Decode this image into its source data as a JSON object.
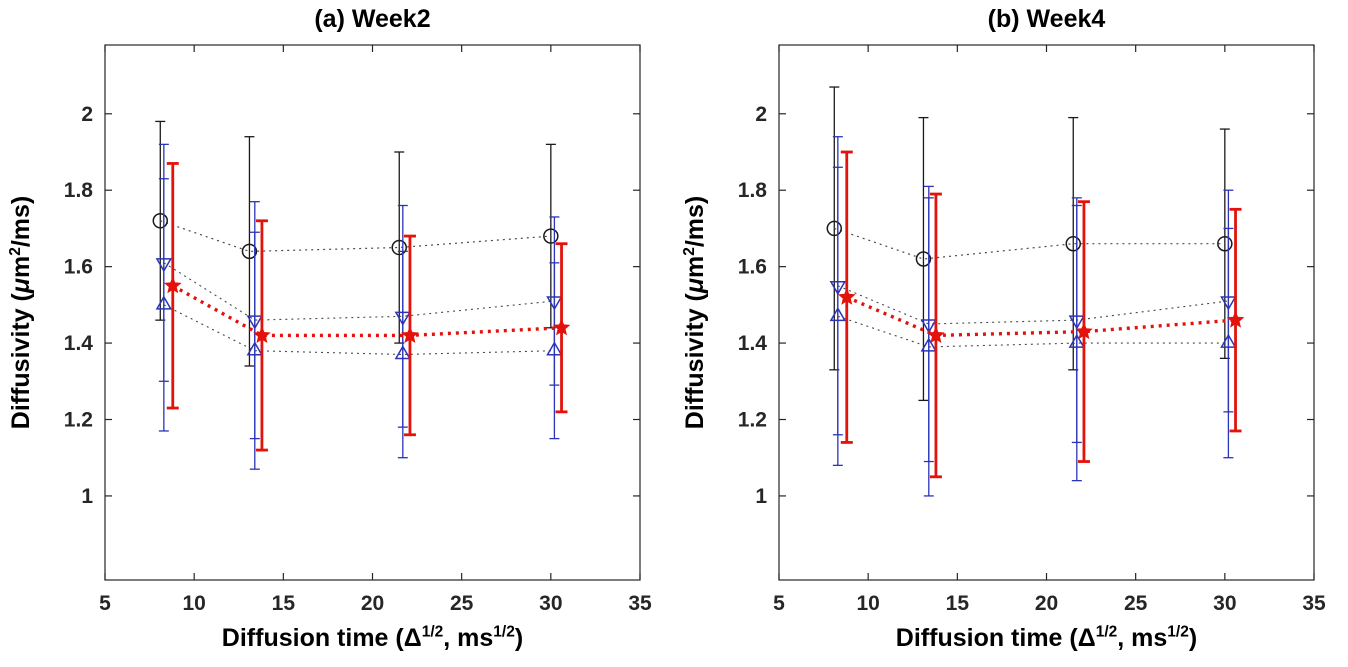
{
  "figure": {
    "background": "#ffffff",
    "axis_color": "#262626",
    "tick_label_color": "#262626",
    "text_color": "#000000"
  },
  "axis_labels": {
    "y": {
      "pre": "Diffusivity (",
      "mu": "μ",
      "base": "m",
      "sup": "2",
      "post": "/ms)"
    },
    "x": {
      "pre": "Diffusion time (",
      "delta": "Δ",
      "sup1": "1/2",
      "mid": ", ms",
      "sup2": "1/2",
      "post": ")"
    }
  },
  "chart_data": [
    {
      "type": "scatter",
      "title": "(a) Week2",
      "xlabel": "Diffusion time (Δ^1/2, ms^1/2)",
      "ylabel": "Diffusivity (μm^2/ms)",
      "xlim": [
        5,
        35
      ],
      "ylim": [
        0.78,
        2.18
      ],
      "xticks": [
        5,
        10,
        15,
        20,
        25,
        30,
        35
      ],
      "yticks": [
        1,
        1.2,
        1.4,
        1.6,
        1.8,
        2
      ],
      "grid": false,
      "legend": null,
      "series": [
        {
          "name": "black-circles",
          "marker": "circle",
          "size": 7,
          "color": "#1a1a1a",
          "line": {
            "color": "#4a4a4a",
            "width": 1.2,
            "dash": "2 4"
          },
          "errorbar": {
            "width": 1.3,
            "cap": 5
          },
          "x": [
            8.1,
            13.1,
            21.5,
            30.0
          ],
          "y": [
            1.72,
            1.64,
            1.65,
            1.68
          ],
          "err": [
            0.26,
            0.3,
            0.25,
            0.24
          ]
        },
        {
          "name": "blue-triangles-down",
          "marker": "triangle-down",
          "size": 8,
          "color": "#2a35b8",
          "line": {
            "color": "#4a4a4a",
            "width": 1.1,
            "dash": "2 4"
          },
          "errorbar": {
            "width": 1.3,
            "cap": 5
          },
          "x": [
            8.3,
            13.4,
            21.7,
            30.2
          ],
          "y": [
            1.61,
            1.46,
            1.47,
            1.51
          ],
          "err": [
            0.31,
            0.31,
            0.29,
            0.22
          ]
        },
        {
          "name": "blue-triangles-up",
          "marker": "triangle-up",
          "size": 8,
          "color": "#2a35b8",
          "line": {
            "color": "#4a4a4a",
            "width": 1.1,
            "dash": "2 4"
          },
          "errorbar": {
            "width": 1.3,
            "cap": 5
          },
          "x": [
            8.3,
            13.4,
            21.7,
            30.2
          ],
          "y": [
            1.5,
            1.38,
            1.37,
            1.38
          ],
          "err": [
            0.33,
            0.31,
            0.27,
            0.23
          ]
        },
        {
          "name": "red-stars",
          "marker": "star",
          "size": 8,
          "color": "#e3120b",
          "line": {
            "color": "#e3120b",
            "width": 3.4,
            "dash": "3 5"
          },
          "errorbar": {
            "width": 2.8,
            "cap": 6
          },
          "x": [
            8.8,
            13.8,
            22.1,
            30.6
          ],
          "y": [
            1.55,
            1.42,
            1.42,
            1.44
          ],
          "err": [
            0.32,
            0.3,
            0.26,
            0.22
          ]
        }
      ]
    },
    {
      "type": "scatter",
      "title": "(b) Week4",
      "xlabel": "Diffusion time (Δ^1/2, ms^1/2)",
      "ylabel": "Diffusivity (μm^2/ms)",
      "xlim": [
        5,
        35
      ],
      "ylim": [
        0.78,
        2.18
      ],
      "xticks": [
        5,
        10,
        15,
        20,
        25,
        30,
        35
      ],
      "yticks": [
        1,
        1.2,
        1.4,
        1.6,
        1.8,
        2
      ],
      "grid": false,
      "legend": null,
      "series": [
        {
          "name": "black-circles",
          "marker": "circle",
          "size": 7,
          "color": "#1a1a1a",
          "line": {
            "color": "#4a4a4a",
            "width": 1.2,
            "dash": "2 4"
          },
          "errorbar": {
            "width": 1.3,
            "cap": 5
          },
          "x": [
            8.1,
            13.1,
            21.5,
            30.0
          ],
          "y": [
            1.7,
            1.62,
            1.66,
            1.66
          ],
          "err": [
            0.37,
            0.37,
            0.33,
            0.3
          ]
        },
        {
          "name": "blue-triangles-down",
          "marker": "triangle-down",
          "size": 8,
          "color": "#2a35b8",
          "line": {
            "color": "#4a4a4a",
            "width": 1.1,
            "dash": "2 4"
          },
          "errorbar": {
            "width": 1.3,
            "cap": 5
          },
          "x": [
            8.3,
            13.4,
            21.7,
            30.2
          ],
          "y": [
            1.55,
            1.45,
            1.46,
            1.51
          ],
          "err": [
            0.39,
            0.36,
            0.32,
            0.29
          ]
        },
        {
          "name": "blue-triangles-up",
          "marker": "triangle-up",
          "size": 8,
          "color": "#2a35b8",
          "line": {
            "color": "#4a4a4a",
            "width": 1.1,
            "dash": "2 4"
          },
          "errorbar": {
            "width": 1.3,
            "cap": 5
          },
          "x": [
            8.3,
            13.4,
            21.7,
            30.2
          ],
          "y": [
            1.47,
            1.39,
            1.4,
            1.4
          ],
          "err": [
            0.39,
            0.39,
            0.36,
            0.3
          ]
        },
        {
          "name": "red-stars",
          "marker": "star",
          "size": 8,
          "color": "#e3120b",
          "line": {
            "color": "#e3120b",
            "width": 3.4,
            "dash": "3 5"
          },
          "errorbar": {
            "width": 2.8,
            "cap": 6
          },
          "x": [
            8.8,
            13.8,
            22.1,
            30.6
          ],
          "y": [
            1.52,
            1.42,
            1.43,
            1.46
          ],
          "err": [
            0.38,
            0.37,
            0.34,
            0.29
          ]
        }
      ]
    }
  ]
}
